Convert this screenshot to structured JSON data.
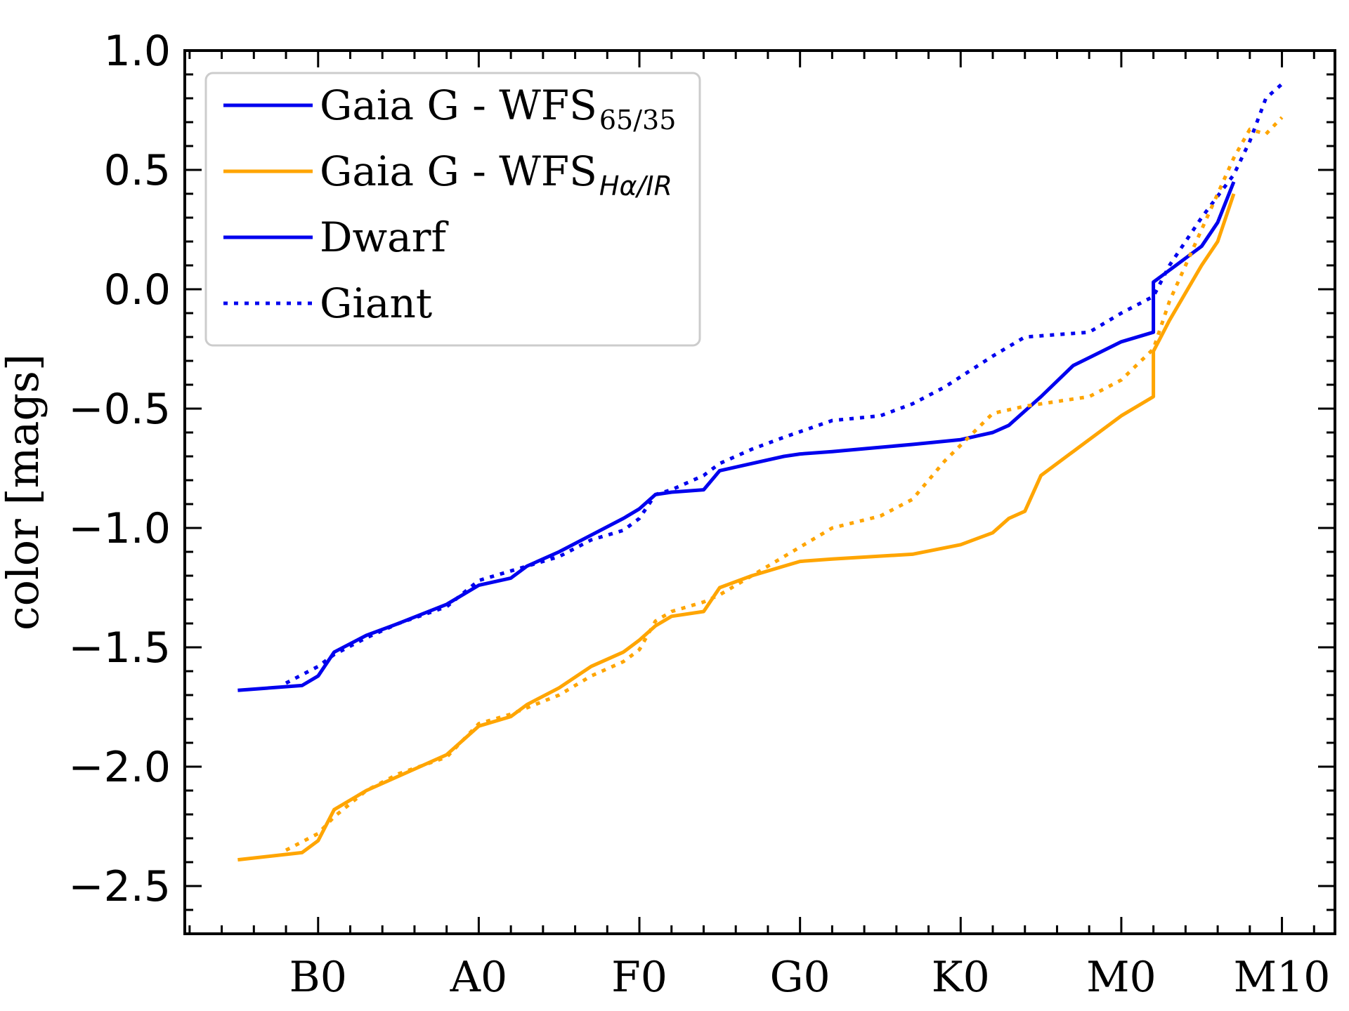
{
  "chart_data": {
    "type": "line",
    "ylabel": "color [mags]",
    "xlabel": "",
    "ylim": [
      -2.7,
      1.0
    ],
    "xlim": [
      -8.3,
      63.3
    ],
    "y_ticks": [
      1.0,
      0.5,
      0.0,
      -0.5,
      -1.0,
      -1.5,
      -2.0,
      -2.5
    ],
    "y_tick_labels": [
      "1.0",
      "0.5",
      "0.0",
      "−0.5",
      "−1.0",
      "−1.5",
      "−2.0",
      "−2.5"
    ],
    "x_ticks": [
      0,
      10,
      20,
      30,
      40,
      50,
      60
    ],
    "x_tick_labels": [
      "B0",
      "A0",
      "F0",
      "G0",
      "K0",
      "M0",
      "M10"
    ],
    "grid": false,
    "legend_position": "top-left",
    "legend": [
      {
        "id": "l1",
        "main": "Gaia G - WFS",
        "sub": "65/35",
        "sub_style": "upright",
        "color": "#0000ee",
        "dash": "solid"
      },
      {
        "id": "l2",
        "main": "Gaia G - WFS",
        "sub": "Hα/IR",
        "sub_style": "italic",
        "color": "#ffa500",
        "dash": "solid"
      },
      {
        "id": "l3",
        "main": "Dwarf",
        "sub": "",
        "sub_style": "upright",
        "color": "#0000ee",
        "dash": "solid"
      },
      {
        "id": "l4",
        "main": "Giant",
        "sub": "",
        "sub_style": "upright",
        "color": "#0000ee",
        "dash": "dotted"
      }
    ],
    "series": [
      {
        "id": "wfs6535-dwarf",
        "color": "#0000ee",
        "dash": "solid",
        "x": [
          -5,
          -1,
          0,
          1,
          3,
          5,
          8,
          10,
          12,
          13,
          15,
          17,
          19,
          20,
          21,
          22,
          24,
          25,
          27,
          29,
          30,
          32,
          37,
          40,
          42,
          43,
          44,
          45,
          47,
          50,
          52,
          52,
          53,
          55,
          56,
          57
        ],
        "y": [
          -1.68,
          -1.66,
          -1.62,
          -1.52,
          -1.45,
          -1.4,
          -1.32,
          -1.24,
          -1.21,
          -1.16,
          -1.1,
          -1.03,
          -0.96,
          -0.92,
          -0.86,
          -0.85,
          -0.84,
          -0.76,
          -0.73,
          -0.7,
          -0.69,
          -0.68,
          -0.65,
          -0.63,
          -0.6,
          -0.57,
          -0.51,
          -0.45,
          -0.32,
          -0.22,
          -0.18,
          0.03,
          0.08,
          0.18,
          0.28,
          0.45
        ]
      },
      {
        "id": "wfs6535-giant",
        "color": "#0000ee",
        "dash": "dotted",
        "x": [
          -2,
          0,
          1,
          3,
          5,
          8,
          10,
          12,
          15,
          17,
          19,
          20,
          21,
          22,
          24,
          25,
          27,
          29,
          32,
          35,
          37,
          39,
          42,
          44,
          46,
          48,
          50,
          52,
          53,
          55,
          57,
          58,
          59,
          60
        ],
        "y": [
          -1.65,
          -1.58,
          -1.53,
          -1.46,
          -1.4,
          -1.33,
          -1.22,
          -1.18,
          -1.12,
          -1.05,
          -1.01,
          -0.96,
          -0.86,
          -0.84,
          -0.78,
          -0.73,
          -0.67,
          -0.62,
          -0.55,
          -0.53,
          -0.48,
          -0.41,
          -0.28,
          -0.2,
          -0.19,
          -0.18,
          -0.1,
          -0.03,
          0.1,
          0.3,
          0.48,
          0.62,
          0.8,
          0.86
        ]
      },
      {
        "id": "wfshair-dwarf",
        "color": "#ffa500",
        "dash": "solid",
        "x": [
          -5,
          -1,
          0,
          1,
          3,
          5,
          8,
          10,
          12,
          13,
          15,
          17,
          19,
          20,
          21,
          22,
          24,
          25,
          27,
          29,
          30,
          32,
          37,
          40,
          42,
          43,
          44,
          45,
          47,
          50,
          52,
          52,
          53,
          55,
          56,
          57
        ],
        "y": [
          -2.39,
          -2.36,
          -2.31,
          -2.18,
          -2.1,
          -2.04,
          -1.95,
          -1.83,
          -1.79,
          -1.74,
          -1.67,
          -1.58,
          -1.52,
          -1.47,
          -1.41,
          -1.37,
          -1.35,
          -1.25,
          -1.2,
          -1.16,
          -1.14,
          -1.13,
          -1.11,
          -1.07,
          -1.02,
          -0.96,
          -0.93,
          -0.78,
          -0.68,
          -0.53,
          -0.45,
          -0.26,
          -0.13,
          0.1,
          0.2,
          0.4
        ]
      },
      {
        "id": "wfshair-giant",
        "color": "#ffa500",
        "dash": "dotted",
        "x": [
          -2,
          0,
          1,
          3,
          5,
          8,
          10,
          12,
          15,
          17,
          19,
          20,
          21,
          22,
          24,
          25,
          27,
          29,
          32,
          35,
          37,
          39,
          42,
          44,
          46,
          48,
          50,
          52,
          53,
          55,
          57,
          58,
          59,
          60
        ],
        "y": [
          -2.35,
          -2.28,
          -2.21,
          -2.1,
          -2.03,
          -1.96,
          -1.82,
          -1.78,
          -1.7,
          -1.62,
          -1.56,
          -1.51,
          -1.39,
          -1.35,
          -1.31,
          -1.28,
          -1.2,
          -1.12,
          -1.0,
          -0.95,
          -0.88,
          -0.72,
          -0.52,
          -0.49,
          -0.47,
          -0.45,
          -0.38,
          -0.25,
          -0.05,
          0.25,
          0.55,
          0.67,
          0.65,
          0.72
        ]
      }
    ]
  }
}
